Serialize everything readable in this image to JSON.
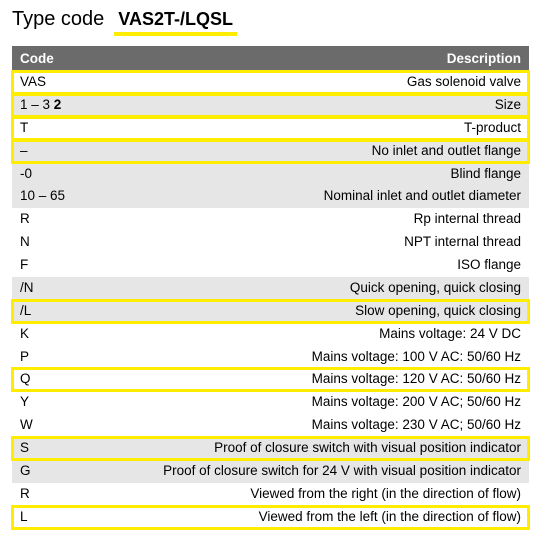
{
  "title": {
    "label": "Type code",
    "code": "VAS2T-/LQSL"
  },
  "header": {
    "code": "Code",
    "desc": "Description"
  },
  "rows": [
    {
      "code": "VAS",
      "codeBold": "",
      "desc": "Gas solenoid valve",
      "bg": "white",
      "hl": true
    },
    {
      "code": "1 – 3",
      "codeBold": " 2",
      "desc": "Size",
      "bg": "grey",
      "hl": true
    },
    {
      "code": "T",
      "codeBold": "",
      "desc": "T-product",
      "bg": "white",
      "hl": true
    },
    {
      "code": "–",
      "codeBold": "",
      "desc": "No inlet and outlet flange",
      "bg": "grey",
      "hl": true
    },
    {
      "code": "-0",
      "codeBold": "",
      "desc": "Blind flange",
      "bg": "grey",
      "hl": false
    },
    {
      "code": "10 – 65",
      "codeBold": "",
      "desc": "Nominal inlet and outlet diameter",
      "bg": "grey",
      "hl": false
    },
    {
      "code": "R",
      "codeBold": "",
      "desc": "Rp internal thread",
      "bg": "white",
      "hl": false
    },
    {
      "code": "N",
      "codeBold": "",
      "desc": "NPT internal thread",
      "bg": "white",
      "hl": false
    },
    {
      "code": "F",
      "codeBold": "",
      "desc": "ISO flange",
      "bg": "white",
      "hl": false
    },
    {
      "code": "/N",
      "codeBold": "",
      "desc": "Quick opening, quick closing",
      "bg": "grey",
      "hl": false
    },
    {
      "code": "/L",
      "codeBold": "",
      "desc": "Slow opening, quick closing",
      "bg": "grey",
      "hl": true
    },
    {
      "code": "K",
      "codeBold": "",
      "desc": "Mains voltage: 24 V DC",
      "bg": "white",
      "hl": false
    },
    {
      "code": "P",
      "codeBold": "",
      "desc": "Mains voltage: 100 V AC: 50/60 Hz",
      "bg": "white",
      "hl": false
    },
    {
      "code": "Q",
      "codeBold": "",
      "desc": "Mains voltage: 120 V AC: 50/60 Hz",
      "bg": "white",
      "hl": true
    },
    {
      "code": "Y",
      "codeBold": "",
      "desc": "Mains voltage: 200 V AC; 50/60 Hz",
      "bg": "white",
      "hl": false
    },
    {
      "code": "W",
      "codeBold": "",
      "desc": "Mains voltage: 230 V AC; 50/60 Hz",
      "bg": "white",
      "hl": false
    },
    {
      "code": "S",
      "codeBold": "",
      "desc": "Proof of closure switch with visual position indicator",
      "bg": "grey",
      "hl": true
    },
    {
      "code": "G",
      "codeBold": "",
      "desc": "Proof of closure switch for 24 V with visual position indicator",
      "bg": "grey",
      "hl": false
    },
    {
      "code": "R",
      "codeBold": "",
      "desc": "Viewed from the right (in the direction of flow)",
      "bg": "white",
      "hl": false
    },
    {
      "code": "L",
      "codeBold": "",
      "desc": "Viewed from the left (in the direction of flow)",
      "bg": "white",
      "hl": true
    }
  ]
}
